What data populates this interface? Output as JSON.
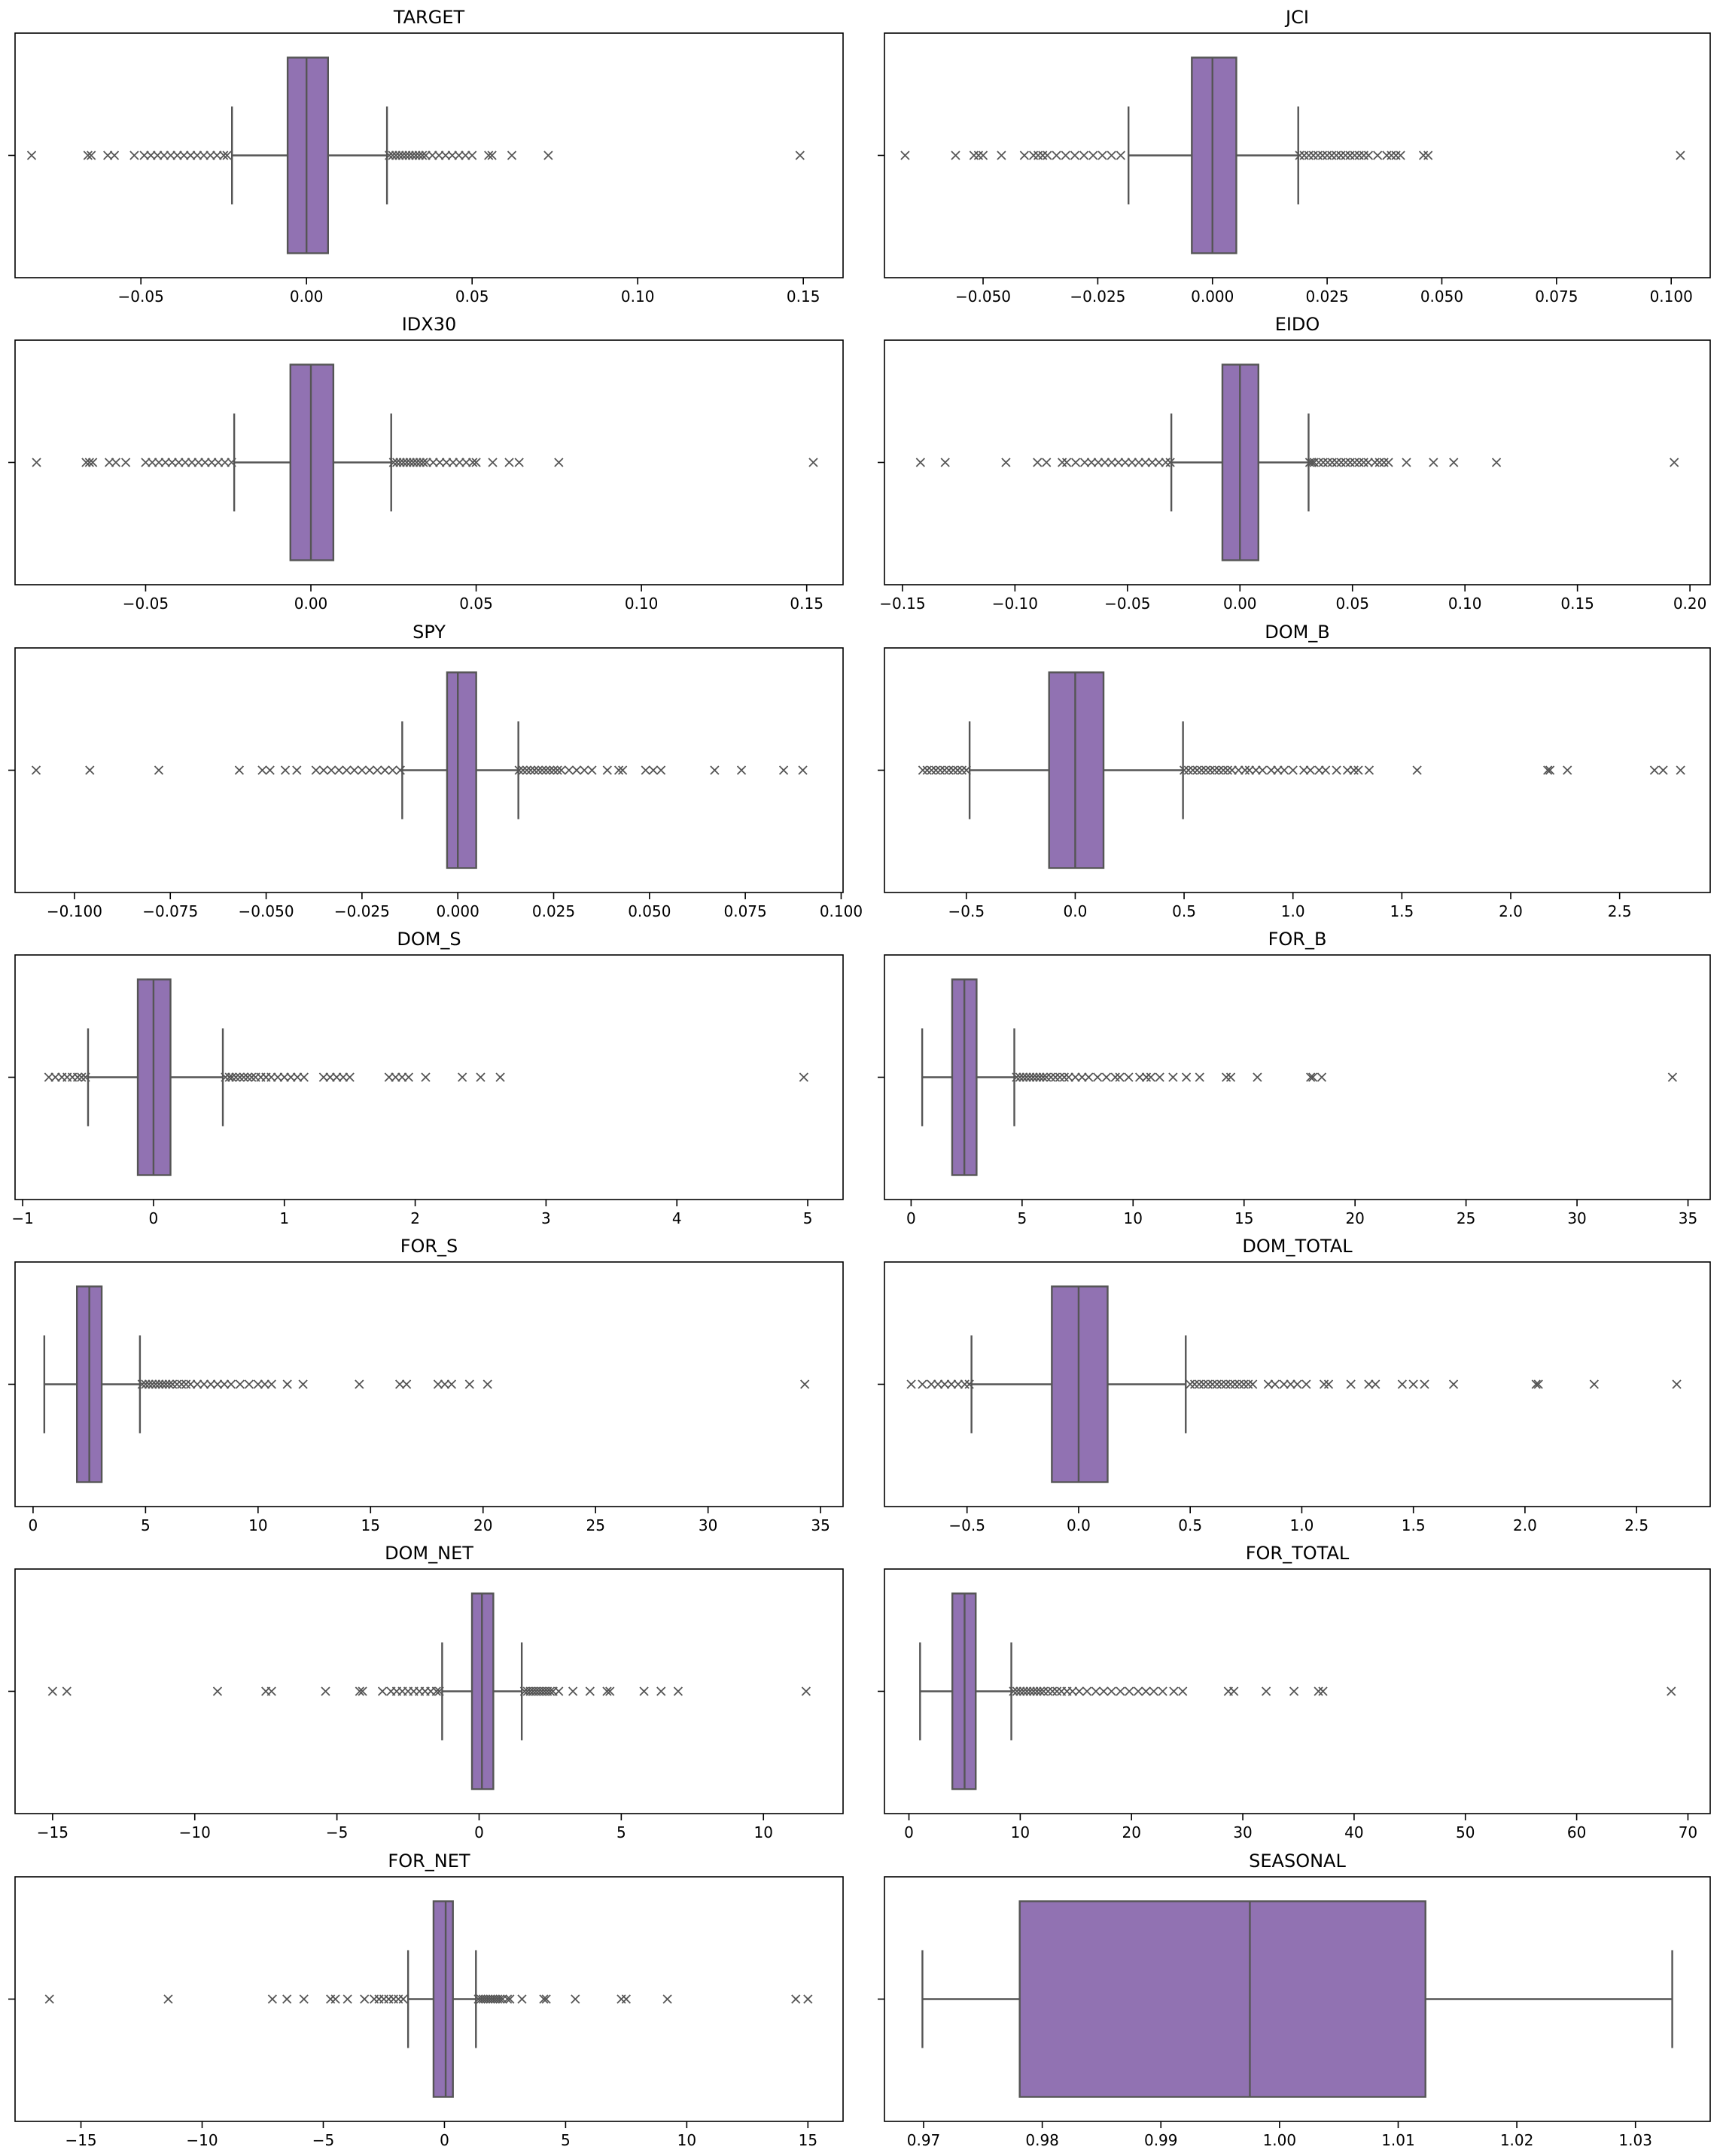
{
  "figure": {
    "box_color": "#9172b2",
    "line_color": "#555555",
    "flier_marker": "x"
  },
  "chart_data": [
    {
      "type": "box",
      "title": "TARGET",
      "xlim": [
        -0.088,
        0.162
      ],
      "ticks": [
        -0.05,
        0.0,
        0.05,
        0.1,
        0.15
      ],
      "tick_labels": [
        "−0.05",
        "0.00",
        "0.05",
        "0.10",
        "0.15"
      ],
      "whisker_low": -0.0225,
      "q1": -0.0057,
      "median": 0.0,
      "q3": 0.0065,
      "whisker_high": 0.0243,
      "outliers": [
        -0.083,
        -0.066,
        -0.065,
        -0.06,
        -0.058,
        -0.052,
        -0.049,
        -0.047,
        -0.045,
        -0.043,
        -0.041,
        -0.039,
        -0.037,
        -0.035,
        -0.033,
        -0.031,
        -0.029,
        -0.027,
        -0.025,
        -0.024,
        0.025,
        0.026,
        0.027,
        0.028,
        0.029,
        0.03,
        0.031,
        0.032,
        0.033,
        0.034,
        0.035,
        0.036,
        0.038,
        0.04,
        0.042,
        0.044,
        0.046,
        0.048,
        0.05,
        0.055,
        0.056,
        0.062,
        0.073,
        0.149
      ]
    },
    {
      "type": "box",
      "title": "JCI",
      "xlim": [
        -0.0715,
        0.1085
      ],
      "ticks": [
        -0.05,
        -0.025,
        0.0,
        0.025,
        0.05,
        0.075,
        0.1
      ],
      "tick_labels": [
        "−0.050",
        "−0.025",
        "0.000",
        "0.025",
        "0.050",
        "0.075",
        "0.100"
      ],
      "whisker_low": -0.0183,
      "q1": -0.0045,
      "median": 0.0,
      "q3": 0.0052,
      "whisker_high": 0.0187,
      "outliers": [
        -0.067,
        -0.056,
        -0.052,
        -0.051,
        -0.05,
        -0.046,
        -0.041,
        -0.039,
        -0.038,
        -0.037,
        -0.036,
        -0.034,
        -0.032,
        -0.03,
        -0.028,
        -0.026,
        -0.024,
        -0.022,
        -0.02,
        0.019,
        0.02,
        0.021,
        0.022,
        0.023,
        0.024,
        0.025,
        0.026,
        0.027,
        0.028,
        0.029,
        0.03,
        0.031,
        0.032,
        0.033,
        0.034,
        0.036,
        0.038,
        0.039,
        0.04,
        0.041,
        0.046,
        0.047,
        0.102
      ]
    },
    {
      "type": "box",
      "title": "IDX30",
      "xlim": [
        -0.0895,
        0.161
      ],
      "ticks": [
        -0.05,
        0.0,
        0.05,
        0.1,
        0.15
      ],
      "tick_labels": [
        "−0.05",
        "0.00",
        "0.05",
        "0.10",
        "0.15"
      ],
      "whisker_low": -0.0232,
      "q1": -0.0062,
      "median": 0.0,
      "q3": 0.0068,
      "whisker_high": 0.0243,
      "outliers": [
        -0.083,
        -0.068,
        -0.067,
        -0.066,
        -0.061,
        -0.059,
        -0.056,
        -0.05,
        -0.048,
        -0.046,
        -0.044,
        -0.042,
        -0.04,
        -0.038,
        -0.036,
        -0.034,
        -0.032,
        -0.03,
        -0.028,
        -0.026,
        -0.024,
        0.025,
        0.026,
        0.027,
        0.028,
        0.029,
        0.03,
        0.031,
        0.032,
        0.033,
        0.034,
        0.035,
        0.037,
        0.039,
        0.041,
        0.043,
        0.045,
        0.047,
        0.049,
        0.05,
        0.055,
        0.06,
        0.063,
        0.075,
        0.152
      ]
    },
    {
      "type": "box",
      "title": "EIDO",
      "xlim": [
        -0.158,
        0.209
      ],
      "ticks": [
        -0.15,
        -0.1,
        -0.05,
        0.0,
        0.05,
        0.1,
        0.15,
        0.2
      ],
      "tick_labels": [
        "−0.15",
        "−0.10",
        "−0.05",
        "0.00",
        "0.05",
        "0.10",
        "0.15",
        "0.20"
      ],
      "whisker_low": -0.0305,
      "q1": -0.0078,
      "median": 0.0,
      "q3": 0.0082,
      "whisker_high": 0.0305,
      "outliers": [
        -0.142,
        -0.131,
        -0.104,
        -0.09,
        -0.086,
        -0.079,
        -0.077,
        -0.073,
        -0.069,
        -0.066,
        -0.063,
        -0.06,
        -0.057,
        -0.054,
        -0.051,
        -0.048,
        -0.045,
        -0.042,
        -0.039,
        -0.036,
        -0.033,
        -0.031,
        0.031,
        0.032,
        0.033,
        0.035,
        0.037,
        0.039,
        0.041,
        0.043,
        0.045,
        0.047,
        0.049,
        0.051,
        0.053,
        0.055,
        0.057,
        0.06,
        0.062,
        0.064,
        0.066,
        0.074,
        0.086,
        0.095,
        0.114,
        0.193
      ]
    },
    {
      "type": "box",
      "title": "SPY",
      "xlim": [
        -0.1155,
        0.1005
      ],
      "ticks": [
        -0.1,
        -0.075,
        -0.05,
        -0.025,
        0.0,
        0.025,
        0.05,
        0.075,
        0.1
      ],
      "tick_labels": [
        "−0.100",
        "−0.075",
        "−0.050",
        "−0.025",
        "0.000",
        "0.025",
        "0.050",
        "0.075",
        "0.100"
      ],
      "whisker_low": -0.0145,
      "q1": -0.0028,
      "median": 0.0,
      "q3": 0.0048,
      "whisker_high": 0.0158,
      "outliers": [
        -0.11,
        -0.096,
        -0.078,
        -0.057,
        -0.051,
        -0.049,
        -0.045,
        -0.042,
        -0.037,
        -0.035,
        -0.033,
        -0.031,
        -0.029,
        -0.027,
        -0.025,
        -0.023,
        -0.021,
        -0.019,
        -0.017,
        -0.015,
        0.016,
        0.017,
        0.018,
        0.019,
        0.02,
        0.021,
        0.022,
        0.023,
        0.024,
        0.025,
        0.026,
        0.027,
        0.029,
        0.031,
        0.033,
        0.035,
        0.039,
        0.042,
        0.043,
        0.049,
        0.051,
        0.053,
        0.067,
        0.074,
        0.085,
        0.09
      ]
    },
    {
      "type": "box",
      "title": "DOM_B",
      "xlim": [
        -0.876,
        2.916
      ],
      "ticks": [
        -0.5,
        0.0,
        0.5,
        1.0,
        1.5,
        2.0,
        2.5
      ],
      "tick_labels": [
        "−0.5",
        "0.0",
        "0.5",
        "1.0",
        "1.5",
        "2.0",
        "2.5"
      ],
      "whisker_low": -0.485,
      "q1": -0.12,
      "median": 0.0,
      "q3": 0.13,
      "whisker_high": 0.495,
      "outliers": [
        -0.7,
        -0.68,
        -0.66,
        -0.64,
        -0.62,
        -0.6,
        -0.58,
        -0.56,
        -0.54,
        -0.52,
        -0.5,
        0.5,
        0.52,
        0.54,
        0.56,
        0.58,
        0.6,
        0.62,
        0.64,
        0.66,
        0.68,
        0.7,
        0.72,
        0.75,
        0.78,
        0.8,
        0.83,
        0.86,
        0.9,
        0.93,
        0.96,
        1.0,
        1.05,
        1.08,
        1.12,
        1.15,
        1.2,
        1.25,
        1.28,
        1.3,
        1.35,
        1.57,
        2.17,
        2.18,
        2.26,
        2.66,
        2.7,
        2.78
      ]
    },
    {
      "type": "box",
      "title": "DOM_S",
      "xlim": [
        -1.058,
        5.27
      ],
      "ticks": [
        -1,
        0,
        1,
        2,
        3,
        4,
        5
      ],
      "tick_labels": [
        "−1",
        "0",
        "1",
        "2",
        "3",
        "4",
        "5"
      ],
      "whisker_low": -0.5,
      "q1": -0.12,
      "median": 0.0,
      "q3": 0.13,
      "whisker_high": 0.53,
      "outliers": [
        -0.8,
        -0.75,
        -0.7,
        -0.66,
        -0.62,
        -0.58,
        -0.55,
        -0.52,
        0.55,
        0.58,
        0.6,
        0.63,
        0.66,
        0.69,
        0.72,
        0.75,
        0.78,
        0.82,
        0.86,
        0.9,
        0.95,
        1.0,
        1.05,
        1.1,
        1.15,
        1.3,
        1.35,
        1.4,
        1.45,
        1.5,
        1.8,
        1.85,
        1.9,
        1.95,
        2.08,
        2.36,
        2.5,
        2.65,
        4.97
      ]
    },
    {
      "type": "box",
      "title": "FOR_B",
      "xlim": [
        -1.2,
        36.0
      ],
      "ticks": [
        0,
        5,
        10,
        15,
        20,
        25,
        30,
        35
      ],
      "tick_labels": [
        "0",
        "5",
        "10",
        "15",
        "20",
        "25",
        "30",
        "35"
      ],
      "whisker_low": 0.5,
      "q1": 1.85,
      "median": 2.4,
      "q3": 2.95,
      "whisker_high": 4.65,
      "outliers": [
        4.75,
        4.9,
        5.05,
        5.2,
        5.35,
        5.5,
        5.65,
        5.8,
        5.95,
        6.1,
        6.3,
        6.5,
        6.7,
        6.9,
        7.1,
        7.4,
        7.7,
        8.0,
        8.4,
        8.8,
        9.2,
        9.4,
        9.8,
        10.3,
        10.6,
        10.8,
        11.2,
        11.8,
        12.4,
        13.0,
        14.2,
        14.4,
        15.6,
        18.0,
        18.1,
        18.5,
        34.3
      ]
    },
    {
      "type": "box",
      "title": "FOR_S",
      "xlim": [
        -0.8,
        36.0
      ],
      "ticks": [
        0,
        5,
        10,
        15,
        20,
        25,
        30,
        35
      ],
      "tick_labels": [
        "0",
        "5",
        "10",
        "15",
        "20",
        "25",
        "30",
        "35"
      ],
      "whisker_low": 0.5,
      "q1": 1.95,
      "median": 2.5,
      "q3": 3.05,
      "whisker_high": 4.75,
      "outliers": [
        4.85,
        5.0,
        5.15,
        5.3,
        5.45,
        5.6,
        5.75,
        5.9,
        6.05,
        6.2,
        6.4,
        6.6,
        6.8,
        7.0,
        7.3,
        7.6,
        7.9,
        8.2,
        8.5,
        8.8,
        9.2,
        9.6,
        10.0,
        10.3,
        10.6,
        11.3,
        12.0,
        14.5,
        16.3,
        16.6,
        18.0,
        18.3,
        18.6,
        19.4,
        20.2,
        34.3
      ]
    },
    {
      "type": "box",
      "title": "DOM_TOTAL",
      "xlim": [
        -0.87,
        2.83
      ],
      "ticks": [
        -0.5,
        0.0,
        0.5,
        1.0,
        1.5,
        2.0,
        2.5
      ],
      "tick_labels": [
        "−0.5",
        "0.0",
        "0.5",
        "1.0",
        "1.5",
        "2.0",
        "2.5"
      ],
      "whisker_low": -0.48,
      "q1": -0.12,
      "median": 0.0,
      "q3": 0.13,
      "whisker_high": 0.48,
      "outliers": [
        -0.75,
        -0.7,
        -0.66,
        -0.63,
        -0.6,
        -0.57,
        -0.54,
        -0.51,
        -0.49,
        0.5,
        0.52,
        0.54,
        0.56,
        0.58,
        0.6,
        0.62,
        0.64,
        0.66,
        0.68,
        0.7,
        0.72,
        0.74,
        0.76,
        0.78,
        0.85,
        0.88,
        0.92,
        0.95,
        0.98,
        1.02,
        1.1,
        1.12,
        1.22,
        1.3,
        1.33,
        1.45,
        1.5,
        1.55,
        1.68,
        2.05,
        2.06,
        2.31,
        2.68
      ]
    },
    {
      "type": "box",
      "title": "DOM_NET",
      "xlim": [
        -16.32,
        12.8
      ],
      "ticks": [
        -15,
        -10,
        -5,
        0,
        5,
        10
      ],
      "tick_labels": [
        "−15",
        "−10",
        "−5",
        "0",
        "5",
        "10"
      ],
      "whisker_low": -1.3,
      "q1": -0.25,
      "median": 0.1,
      "q3": 0.5,
      "whisker_high": 1.5,
      "outliers": [
        -15.0,
        -14.5,
        -9.2,
        -7.5,
        -7.3,
        -5.4,
        -4.2,
        -4.1,
        -3.4,
        -3.1,
        -2.9,
        -2.7,
        -2.5,
        -2.3,
        -2.1,
        -1.9,
        -1.7,
        -1.5,
        -1.4,
        1.6,
        1.7,
        1.8,
        1.9,
        2.0,
        2.1,
        2.2,
        2.3,
        2.4,
        2.5,
        2.6,
        2.8,
        3.3,
        3.9,
        4.5,
        4.6,
        5.8,
        6.4,
        7.0,
        11.5
      ]
    },
    {
      "type": "box",
      "title": "FOR_TOTAL",
      "xlim": [
        -2.2,
        72.0
      ],
      "ticks": [
        0,
        10,
        20,
        30,
        40,
        50,
        60,
        70
      ],
      "tick_labels": [
        "0",
        "10",
        "20",
        "30",
        "40",
        "50",
        "60",
        "70"
      ],
      "whisker_low": 1.0,
      "q1": 3.9,
      "median": 5.0,
      "q3": 6.0,
      "whisker_high": 9.2,
      "outliers": [
        9.4,
        9.7,
        10.0,
        10.3,
        10.6,
        10.9,
        11.2,
        11.5,
        11.8,
        12.1,
        12.5,
        12.9,
        13.3,
        13.7,
        14.2,
        14.7,
        15.3,
        16.0,
        16.8,
        17.5,
        18.2,
        19.0,
        19.8,
        20.6,
        21.3,
        22.0,
        22.8,
        23.8,
        24.6,
        28.7,
        29.2,
        32.1,
        34.6,
        36.8,
        37.2,
        68.5
      ]
    },
    {
      "type": "box",
      "title": "FOR_NET",
      "xlim": [
        -17.72,
        16.45
      ],
      "ticks": [
        -15,
        -10,
        -5,
        0,
        5,
        10,
        15
      ],
      "tick_labels": [
        "−15",
        "−10",
        "−5",
        "0",
        "5",
        "10",
        "15"
      ],
      "whisker_low": -1.5,
      "q1": -0.45,
      "median": 0.05,
      "q3": 0.35,
      "whisker_high": 1.3,
      "outliers": [
        -16.3,
        -11.4,
        -7.1,
        -6.5,
        -5.8,
        -4.7,
        -4.5,
        -4.0,
        -3.3,
        -2.9,
        -2.7,
        -2.5,
        -2.3,
        -2.1,
        -1.9,
        -1.7,
        1.4,
        1.5,
        1.6,
        1.7,
        1.8,
        1.9,
        2.0,
        2.1,
        2.2,
        2.3,
        2.4,
        2.6,
        2.7,
        3.2,
        4.1,
        4.2,
        5.4,
        7.3,
        7.5,
        9.2,
        14.5,
        15.0
      ]
    },
    {
      "type": "box",
      "title": "SEASONAL",
      "xlim": [
        0.9667,
        1.0363
      ],
      "ticks": [
        0.97,
        0.98,
        0.99,
        1.0,
        1.01,
        1.02,
        1.03
      ],
      "tick_labels": [
        "0.97",
        "0.98",
        "0.99",
        "1.00",
        "1.01",
        "1.02",
        "1.03"
      ],
      "whisker_low": 0.9699,
      "q1": 0.9781,
      "median": 0.9975,
      "q3": 1.0123,
      "whisker_high": 1.0331,
      "outliers": []
    }
  ]
}
